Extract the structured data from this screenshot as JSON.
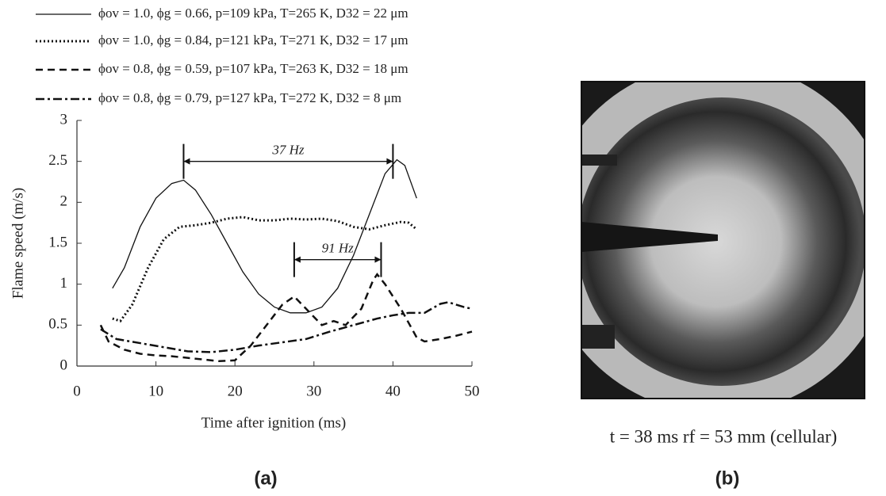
{
  "chart_data": {
    "type": "line",
    "xlabel": "Time after ignition (ms)",
    "ylabel": "Flame speed (m/s)",
    "xlim": [
      0,
      50
    ],
    "xticks": [
      0,
      10,
      20,
      30,
      40,
      50
    ],
    "ylim": [
      0,
      3
    ],
    "yticks": [
      0,
      0.5,
      1,
      1.5,
      2,
      2.5,
      3
    ],
    "series": [
      {
        "name": "ϕov = 1.0, ϕg = 0.66, p=109 kPa, T=265 K, D32 = 22 μm",
        "color": "#111111",
        "text_color": "#111111",
        "linestyle": "solid",
        "x": [
          4.5,
          6,
          8,
          10,
          12,
          13.5,
          15,
          17,
          19,
          21,
          23,
          25,
          27,
          29,
          31,
          33,
          35,
          37,
          39,
          40.5,
          41.5,
          43
        ],
        "values": [
          0.95,
          1.2,
          1.7,
          2.05,
          2.23,
          2.27,
          2.15,
          1.85,
          1.5,
          1.15,
          0.88,
          0.72,
          0.65,
          0.65,
          0.72,
          0.95,
          1.35,
          1.85,
          2.35,
          2.52,
          2.45,
          2.05
        ]
      },
      {
        "name": "ϕov = 1.0, ϕg = 0.84, p=121 kPa, T=271 K, D32 = 17 μm",
        "color": "#111111",
        "text_color": "#d42a2a",
        "linestyle": "dotted",
        "x": [
          4.5,
          5.5,
          7,
          9,
          11,
          13,
          15,
          17,
          19,
          21,
          23,
          25,
          27,
          29,
          31,
          33,
          35,
          37,
          39,
          41,
          42,
          43
        ],
        "values": [
          0.58,
          0.55,
          0.75,
          1.2,
          1.55,
          1.7,
          1.72,
          1.75,
          1.8,
          1.82,
          1.78,
          1.78,
          1.8,
          1.79,
          1.8,
          1.77,
          1.7,
          1.67,
          1.72,
          1.76,
          1.75,
          1.67
        ]
      },
      {
        "name": "ϕov = 0.8, ϕg = 0.59, p=107 kPa, T=263 K, D32 = 18 μm",
        "color": "#111111",
        "text_color": "#111111",
        "linestyle": "dashed",
        "x": [
          3,
          4,
          6,
          8,
          10,
          12,
          14,
          16,
          18,
          20,
          22,
          24,
          26,
          27.5,
          29,
          31,
          32.5,
          34,
          36,
          37.5,
          38,
          39,
          41,
          43,
          44,
          46,
          48,
          50
        ],
        "values": [
          0.5,
          0.3,
          0.2,
          0.15,
          0.13,
          0.12,
          0.1,
          0.08,
          0.06,
          0.07,
          0.25,
          0.5,
          0.75,
          0.85,
          0.7,
          0.5,
          0.55,
          0.5,
          0.7,
          1.05,
          1.12,
          1.0,
          0.7,
          0.35,
          0.3,
          0.33,
          0.37,
          0.42
        ]
      },
      {
        "name": "ϕov = 0.8, ϕg = 0.79, p=127 kPa, T=272 K, D32 = 8 μm",
        "color": "#111111",
        "text_color": "#111111",
        "linestyle": "dashdot",
        "x": [
          3,
          5,
          8,
          11,
          14,
          17,
          20,
          23,
          26,
          29,
          32,
          35,
          38,
          40,
          42,
          44,
          46,
          47,
          49,
          50
        ],
        "values": [
          0.45,
          0.33,
          0.28,
          0.23,
          0.18,
          0.17,
          0.2,
          0.25,
          0.29,
          0.33,
          0.42,
          0.5,
          0.58,
          0.62,
          0.65,
          0.65,
          0.76,
          0.78,
          0.72,
          0.7
        ]
      }
    ],
    "annotations": [
      {
        "text": "37 Hz",
        "x": [
          13.5,
          40
        ],
        "y": 2.5
      },
      {
        "text": "91 Hz",
        "x": [
          27.5,
          38.5
        ],
        "y": 1.3
      }
    ]
  },
  "image": {
    "caption": "t = 38 ms  rf = 53 mm (cellular)"
  },
  "panel_labels": [
    "(a)",
    "(b)"
  ]
}
